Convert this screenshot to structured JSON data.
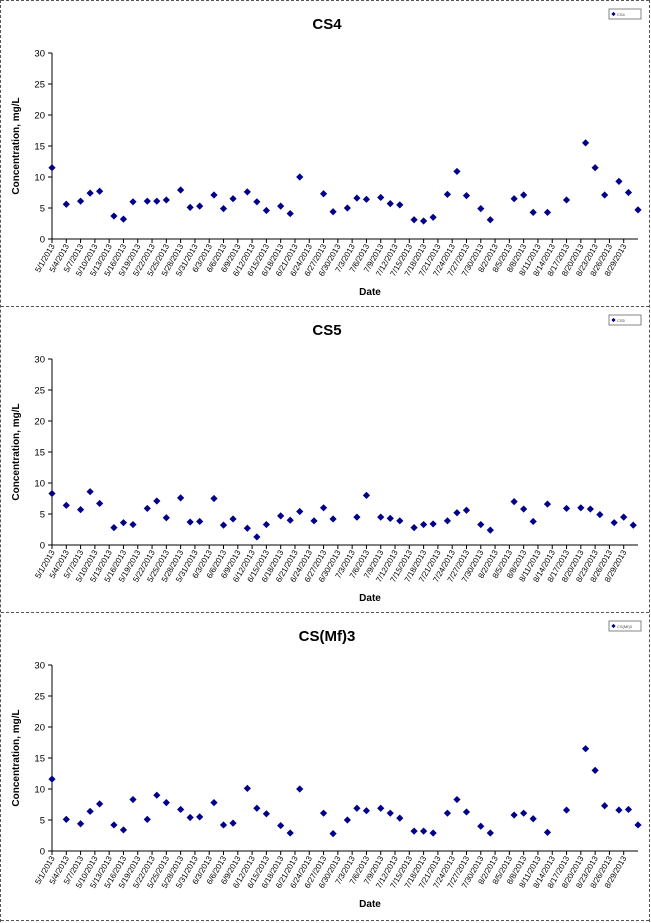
{
  "chart_data": [
    {
      "type": "scatter",
      "title": "CS4",
      "xlabel": "Date",
      "ylabel": "Concentration, mg/L",
      "ylim": [
        0,
        30
      ],
      "yticks": [
        0,
        5,
        10,
        15,
        20,
        25,
        30
      ],
      "grid": false,
      "legend": "top-right",
      "legend_text": "CS4",
      "marker_color": "#00008B",
      "xticks": [
        "5/1/2013",
        "5/4/2013",
        "5/7/2013",
        "5/10/2013",
        "5/13/2013",
        "5/16/2013",
        "5/19/2013",
        "5/22/2013",
        "5/25/2013",
        "5/28/2013",
        "5/31/2013",
        "6/3/2013",
        "6/6/2013",
        "6/9/2013",
        "6/12/2013",
        "6/15/2013",
        "6/18/2013",
        "6/21/2013",
        "6/24/2013",
        "6/27/2013",
        "6/30/2013",
        "7/3/2013",
        "7/6/2013",
        "7/9/2013",
        "7/12/2013",
        "7/15/2013",
        "7/18/2013",
        "7/21/2013",
        "7/24/2013",
        "7/27/2013",
        "7/30/2013",
        "8/2/2013",
        "8/5/2013",
        "8/8/2013",
        "8/11/2013",
        "8/14/2013",
        "8/17/2013",
        "8/20/2013",
        "8/23/2013",
        "8/26/2013",
        "8/29/2013"
      ],
      "points": [
        {
          "x": "5/1/2013",
          "y": 11.5
        },
        {
          "x": "5/4/2013",
          "y": 5.6
        },
        {
          "x": "5/7/2013",
          "y": 6.1
        },
        {
          "x": "5/9/2013",
          "y": 7.4
        },
        {
          "x": "5/11/2013",
          "y": 7.7
        },
        {
          "x": "5/14/2013",
          "y": 3.7
        },
        {
          "x": "5/16/2013",
          "y": 3.2
        },
        {
          "x": "5/18/2013",
          "y": 6.0
        },
        {
          "x": "5/21/2013",
          "y": 6.1
        },
        {
          "x": "5/23/2013",
          "y": 6.1
        },
        {
          "x": "5/25/2013",
          "y": 6.3
        },
        {
          "x": "5/28/2013",
          "y": 7.9
        },
        {
          "x": "5/30/2013",
          "y": 5.1
        },
        {
          "x": "6/1/2013",
          "y": 5.3
        },
        {
          "x": "6/4/2013",
          "y": 7.1
        },
        {
          "x": "6/6/2013",
          "y": 4.9
        },
        {
          "x": "6/8/2013",
          "y": 6.5
        },
        {
          "x": "6/11/2013",
          "y": 7.6
        },
        {
          "x": "6/13/2013",
          "y": 6.0
        },
        {
          "x": "6/15/2013",
          "y": 4.6
        },
        {
          "x": "6/18/2013",
          "y": 5.3
        },
        {
          "x": "6/20/2013",
          "y": 4.1
        },
        {
          "x": "6/22/2013",
          "y": 10.0
        },
        {
          "x": "6/27/2013",
          "y": 7.3
        },
        {
          "x": "6/29/2013",
          "y": 4.4
        },
        {
          "x": "7/2/2013",
          "y": 5.0
        },
        {
          "x": "7/4/2013",
          "y": 6.6
        },
        {
          "x": "7/6/2013",
          "y": 6.4
        },
        {
          "x": "7/9/2013",
          "y": 6.7
        },
        {
          "x": "7/11/2013",
          "y": 5.7
        },
        {
          "x": "7/13/2013",
          "y": 5.5
        },
        {
          "x": "7/16/2013",
          "y": 3.1
        },
        {
          "x": "7/18/2013",
          "y": 2.9
        },
        {
          "x": "7/20/2013",
          "y": 3.5
        },
        {
          "x": "7/23/2013",
          "y": 7.2
        },
        {
          "x": "7/25/2013",
          "y": 10.9
        },
        {
          "x": "7/27/2013",
          "y": 7.0
        },
        {
          "x": "7/30/2013",
          "y": 4.9
        },
        {
          "x": "8/1/2013",
          "y": 3.1
        },
        {
          "x": "8/6/2013",
          "y": 6.5
        },
        {
          "x": "8/8/2013",
          "y": 7.1
        },
        {
          "x": "8/10/2013",
          "y": 4.3
        },
        {
          "x": "8/13/2013",
          "y": 4.3
        },
        {
          "x": "8/17/2013",
          "y": 6.3
        },
        {
          "x": "8/21/2013",
          "y": 15.5
        },
        {
          "x": "8/23/2013",
          "y": 11.5
        },
        {
          "x": "8/25/2013",
          "y": 7.1
        },
        {
          "x": "8/28/2013",
          "y": 9.3
        },
        {
          "x": "8/30/2013",
          "y": 7.5
        },
        {
          "x": "9/1/2013",
          "y": 4.7
        }
      ]
    },
    {
      "type": "scatter",
      "title": "CS5",
      "xlabel": "Date",
      "ylabel": "Concentration, mg/L",
      "ylim": [
        0,
        30
      ],
      "yticks": [
        0,
        5,
        10,
        15,
        20,
        25,
        30
      ],
      "grid": false,
      "legend": "top-right",
      "legend_text": "CS5",
      "marker_color": "#00008B",
      "xticks": [
        "5/1/2013",
        "5/4/2013",
        "5/7/2013",
        "5/10/2013",
        "5/13/2013",
        "5/16/2013",
        "5/19/2013",
        "5/22/2013",
        "5/25/2013",
        "5/28/2013",
        "5/31/2013",
        "6/3/2013",
        "6/6/2013",
        "6/9/2013",
        "6/12/2013",
        "6/15/2013",
        "6/18/2013",
        "6/21/2013",
        "6/24/2013",
        "6/27/2013",
        "6/30/2013",
        "7/3/2013",
        "7/6/2013",
        "7/9/2013",
        "7/12/2013",
        "7/15/2013",
        "7/18/2013",
        "7/21/2013",
        "7/24/2013",
        "7/27/2013",
        "7/30/2013",
        "8/2/2013",
        "8/5/2013",
        "8/8/2013",
        "8/11/2013",
        "8/14/2013",
        "8/17/2013",
        "8/20/2013",
        "8/23/2013",
        "8/26/2013",
        "8/29/2013"
      ],
      "points": [
        {
          "x": "5/1/2013",
          "y": 8.3
        },
        {
          "x": "5/4/2013",
          "y": 6.4
        },
        {
          "x": "5/7/2013",
          "y": 5.7
        },
        {
          "x": "5/9/2013",
          "y": 8.6
        },
        {
          "x": "5/11/2013",
          "y": 6.7
        },
        {
          "x": "5/14/2013",
          "y": 2.8
        },
        {
          "x": "5/16/2013",
          "y": 3.6
        },
        {
          "x": "5/18/2013",
          "y": 3.3
        },
        {
          "x": "5/21/2013",
          "y": 5.9
        },
        {
          "x": "5/23/2013",
          "y": 7.1
        },
        {
          "x": "5/25/2013",
          "y": 4.4
        },
        {
          "x": "5/28/2013",
          "y": 7.6
        },
        {
          "x": "5/30/2013",
          "y": 3.7
        },
        {
          "x": "6/1/2013",
          "y": 3.8
        },
        {
          "x": "6/4/2013",
          "y": 7.5
        },
        {
          "x": "6/6/2013",
          "y": 3.2
        },
        {
          "x": "6/8/2013",
          "y": 4.2
        },
        {
          "x": "6/11/2013",
          "y": 2.7
        },
        {
          "x": "6/13/2013",
          "y": 1.3
        },
        {
          "x": "6/15/2013",
          "y": 3.3
        },
        {
          "x": "6/18/2013",
          "y": 4.7
        },
        {
          "x": "6/20/2013",
          "y": 4.0
        },
        {
          "x": "6/22/2013",
          "y": 5.4
        },
        {
          "x": "6/25/2013",
          "y": 3.9
        },
        {
          "x": "6/27/2013",
          "y": 6.0
        },
        {
          "x": "6/29/2013",
          "y": 4.2
        },
        {
          "x": "7/4/2013",
          "y": 4.5
        },
        {
          "x": "7/6/2013",
          "y": 8.0
        },
        {
          "x": "7/9/2013",
          "y": 4.5
        },
        {
          "x": "7/11/2013",
          "y": 4.3
        },
        {
          "x": "7/13/2013",
          "y": 3.9
        },
        {
          "x": "7/16/2013",
          "y": 2.8
        },
        {
          "x": "7/18/2013",
          "y": 3.3
        },
        {
          "x": "7/20/2013",
          "y": 3.4
        },
        {
          "x": "7/23/2013",
          "y": 3.9
        },
        {
          "x": "7/25/2013",
          "y": 5.2
        },
        {
          "x": "7/27/2013",
          "y": 5.6
        },
        {
          "x": "7/30/2013",
          "y": 3.3
        },
        {
          "x": "8/1/2013",
          "y": 2.4
        },
        {
          "x": "8/6/2013",
          "y": 7.0
        },
        {
          "x": "8/8/2013",
          "y": 5.8
        },
        {
          "x": "8/10/2013",
          "y": 3.8
        },
        {
          "x": "8/13/2013",
          "y": 6.6
        },
        {
          "x": "8/17/2013",
          "y": 5.9
        },
        {
          "x": "8/20/2013",
          "y": 6.0
        },
        {
          "x": "8/22/2013",
          "y": 5.8
        },
        {
          "x": "8/24/2013",
          "y": 4.9
        },
        {
          "x": "8/27/2013",
          "y": 3.6
        },
        {
          "x": "8/29/2013",
          "y": 4.5
        },
        {
          "x": "8/31/2013",
          "y": 3.2
        }
      ]
    },
    {
      "type": "scatter",
      "title": "CS(Mf)3",
      "xlabel": "Date",
      "ylabel": "Concentration, mg/L",
      "ylim": [
        0,
        30
      ],
      "yticks": [
        0,
        5,
        10,
        15,
        20,
        25,
        30
      ],
      "grid": false,
      "legend": "top-right",
      "legend_text": "CS(Mf)3",
      "marker_color": "#00008B",
      "xticks": [
        "5/1/2013",
        "5/4/2013",
        "5/7/2013",
        "5/10/2013",
        "5/13/2013",
        "5/16/2013",
        "5/19/2013",
        "5/22/2013",
        "5/25/2013",
        "5/28/2013",
        "5/31/2013",
        "6/3/2013",
        "6/6/2013",
        "6/9/2013",
        "6/12/2013",
        "6/15/2013",
        "6/18/2013",
        "6/21/2013",
        "6/24/2013",
        "6/27/2013",
        "6/30/2013",
        "7/3/2013",
        "7/6/2013",
        "7/9/2013",
        "7/12/2013",
        "7/15/2013",
        "7/18/2013",
        "7/21/2013",
        "7/24/2013",
        "7/27/2013",
        "7/30/2013",
        "8/2/2013",
        "8/5/2013",
        "8/8/2013",
        "8/11/2013",
        "8/14/2013",
        "8/17/2013",
        "8/20/2013",
        "8/23/2013",
        "8/26/2013",
        "8/29/2013"
      ],
      "points": [
        {
          "x": "5/1/2013",
          "y": 11.6
        },
        {
          "x": "5/4/2013",
          "y": 5.1
        },
        {
          "x": "5/7/2013",
          "y": 4.4
        },
        {
          "x": "5/9/2013",
          "y": 6.4
        },
        {
          "x": "5/11/2013",
          "y": 7.6
        },
        {
          "x": "5/14/2013",
          "y": 4.2
        },
        {
          "x": "5/16/2013",
          "y": 3.4
        },
        {
          "x": "5/18/2013",
          "y": 8.3
        },
        {
          "x": "5/21/2013",
          "y": 5.1
        },
        {
          "x": "5/23/2013",
          "y": 9.0
        },
        {
          "x": "5/25/2013",
          "y": 7.8
        },
        {
          "x": "5/28/2013",
          "y": 6.7
        },
        {
          "x": "5/30/2013",
          "y": 5.4
        },
        {
          "x": "6/1/2013",
          "y": 5.5
        },
        {
          "x": "6/4/2013",
          "y": 7.8
        },
        {
          "x": "6/6/2013",
          "y": 4.2
        },
        {
          "x": "6/8/2013",
          "y": 4.5
        },
        {
          "x": "6/11/2013",
          "y": 10.1
        },
        {
          "x": "6/13/2013",
          "y": 6.9
        },
        {
          "x": "6/15/2013",
          "y": 6.0
        },
        {
          "x": "6/18/2013",
          "y": 4.1
        },
        {
          "x": "6/20/2013",
          "y": 2.9
        },
        {
          "x": "6/22/2013",
          "y": 10.0
        },
        {
          "x": "6/27/2013",
          "y": 6.1
        },
        {
          "x": "6/29/2013",
          "y": 2.8
        },
        {
          "x": "7/2/2013",
          "y": 5.0
        },
        {
          "x": "7/4/2013",
          "y": 6.9
        },
        {
          "x": "7/6/2013",
          "y": 6.5
        },
        {
          "x": "7/9/2013",
          "y": 6.9
        },
        {
          "x": "7/11/2013",
          "y": 6.1
        },
        {
          "x": "7/13/2013",
          "y": 5.3
        },
        {
          "x": "7/16/2013",
          "y": 3.2
        },
        {
          "x": "7/18/2013",
          "y": 3.2
        },
        {
          "x": "7/20/2013",
          "y": 2.9
        },
        {
          "x": "7/23/2013",
          "y": 6.1
        },
        {
          "x": "7/25/2013",
          "y": 8.3
        },
        {
          "x": "7/27/2013",
          "y": 6.3
        },
        {
          "x": "7/30/2013",
          "y": 4.0
        },
        {
          "x": "8/1/2013",
          "y": 2.9
        },
        {
          "x": "8/6/2013",
          "y": 5.8
        },
        {
          "x": "8/8/2013",
          "y": 6.1
        },
        {
          "x": "8/10/2013",
          "y": 5.2
        },
        {
          "x": "8/13/2013",
          "y": 3.0
        },
        {
          "x": "8/17/2013",
          "y": 6.6
        },
        {
          "x": "8/21/2013",
          "y": 16.5
        },
        {
          "x": "8/23/2013",
          "y": 13.0
        },
        {
          "x": "8/25/2013",
          "y": 7.3
        },
        {
          "x": "8/28/2013",
          "y": 6.6
        },
        {
          "x": "8/30/2013",
          "y": 6.7
        },
        {
          "x": "9/1/2013",
          "y": 4.2
        }
      ]
    }
  ]
}
